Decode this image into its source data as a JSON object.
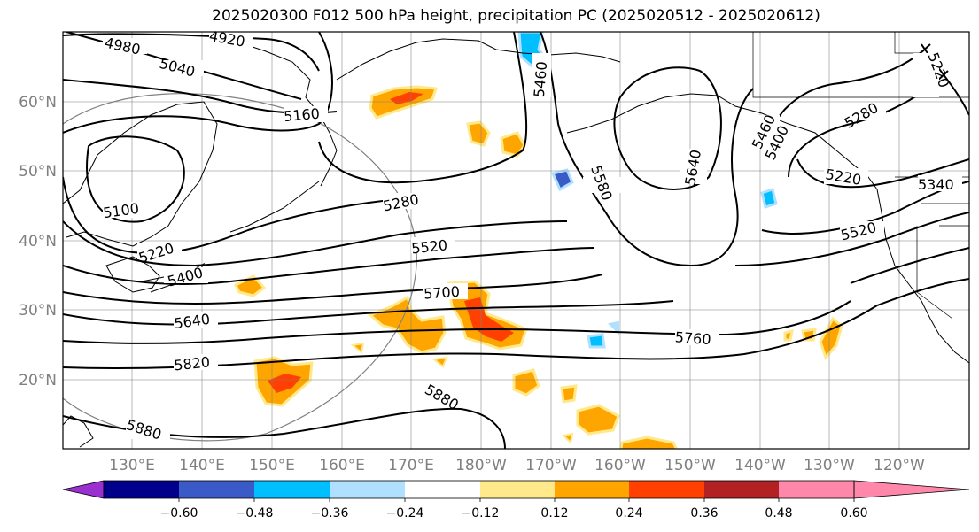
{
  "title": "2025020300 F012 500 hPa height, precipitation PC (2025020512 - 2025020612)",
  "lat_labels": [
    "60°N",
    "50°N",
    "40°N",
    "30°N",
    "20°N"
  ],
  "lon_labels": [
    "130°E",
    "140°E",
    "150°E",
    "160°E",
    "170°E",
    "180°W",
    "170°W",
    "160°W",
    "150°W",
    "140°W",
    "130°W",
    "120°W"
  ],
  "contour_labels": [
    "4980",
    "4920",
    "5040",
    "5160",
    "5100",
    "5220",
    "5400",
    "5280",
    "5520",
    "5700",
    "5640",
    "5820",
    "5880",
    "5880",
    "5580",
    "5640",
    "5460",
    "5400",
    "5280",
    "5220",
    "5340",
    "5520",
    "5760",
    "5460",
    "5220"
  ],
  "colorbar": {
    "ticks": [
      "−0.60",
      "−0.48",
      "−0.36",
      "−0.24",
      "−0.12",
      "0.12",
      "0.24",
      "0.36",
      "0.48",
      "0.60"
    ],
    "colors": [
      "#9b30d0",
      "#00008b",
      "#3a5bc7",
      "#00bfff",
      "#b0e0ff",
      "#ffffff",
      "#ffe98a",
      "#ffa500",
      "#ff4000",
      "#b22222",
      "#ff88aa"
    ]
  }
}
